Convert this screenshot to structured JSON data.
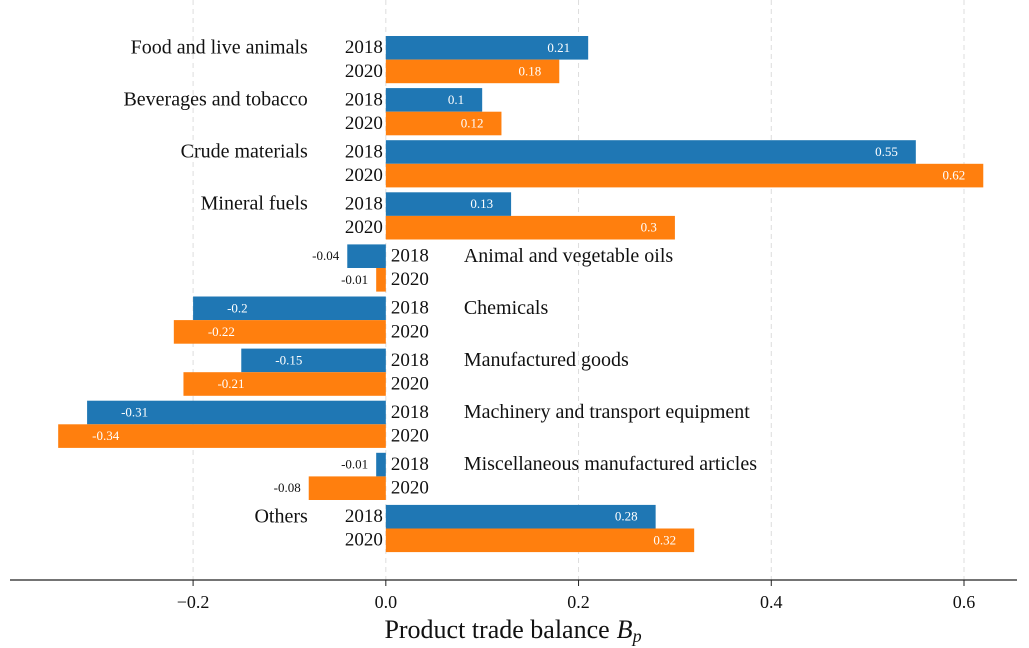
{
  "chart_data": {
    "type": "barh",
    "categories": [
      "Food and live animals",
      "Beverages and tobacco",
      "Crude materials",
      "Mineral fuels",
      "Animal and vegetable oils",
      "Chemicals",
      "Manufactured goods",
      "Machinery and transport equipment",
      "Miscellaneous manufactured articles",
      "Others"
    ],
    "series": [
      {
        "name": "2018",
        "color": "#1f77b4",
        "values": [
          0.21,
          0.1,
          0.55,
          0.13,
          -0.04,
          -0.2,
          -0.15,
          -0.31,
          -0.01,
          0.28
        ]
      },
      {
        "name": "2020",
        "color": "#ff7f0e",
        "values": [
          0.18,
          0.12,
          0.62,
          0.3,
          -0.01,
          -0.22,
          -0.21,
          -0.34,
          -0.08,
          0.32
        ]
      }
    ],
    "xlim": [
      -0.39,
      0.655
    ],
    "xticks": [
      {
        "value": -0.2,
        "label": "−0.2"
      },
      {
        "value": 0,
        "label": "0.0"
      },
      0.2,
      0.4,
      0.6
    ],
    "xlabel": [
      "Product trade balance",
      "B",
      "p"
    ],
    "grid": true
  }
}
